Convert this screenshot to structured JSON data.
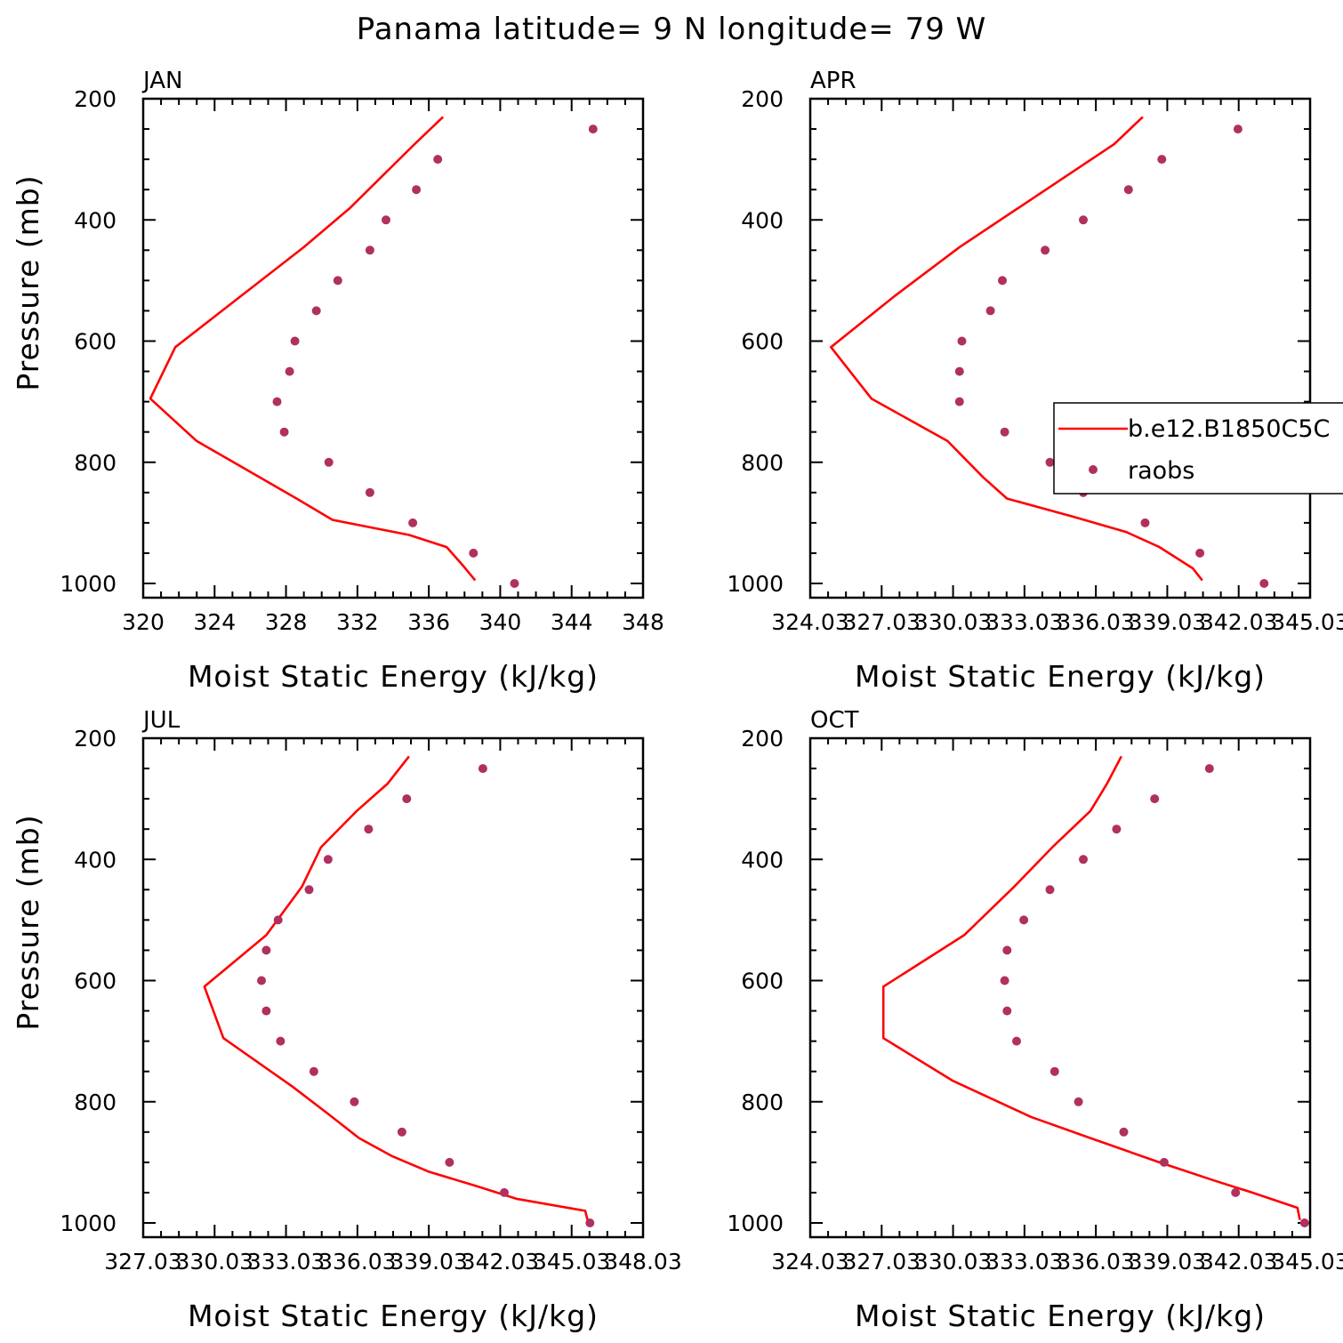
{
  "title": "Panama  latitude= 9 N longitude= 79 W",
  "colors": {
    "model": "#ff0000",
    "obs": "#b03060"
  },
  "legend": {
    "entries": [
      "b.e12.B1850C5C",
      "raobs"
    ],
    "location": "APR panel, right edge"
  },
  "chart_data": [
    {
      "type": "line",
      "panel_label": "JAN",
      "xlabel": "Moist Static Energy (kJ/kg)",
      "ylabel": "Pressure (mb)",
      "xlim": [
        320,
        348
      ],
      "ylim": [
        1000,
        200
      ],
      "x_ticks": [
        "320",
        "324",
        "328",
        "332",
        "336",
        "340",
        "344",
        "348"
      ],
      "y_ticks": [
        "200",
        "400",
        "600",
        "800",
        "1000"
      ],
      "series": [
        {
          "name": "b.e12.B1850C5C",
          "kind": "line",
          "points": [
            [
              336.8,
              230
            ],
            [
              335.2,
              275
            ],
            [
              331.6,
              380
            ],
            [
              329,
              445
            ],
            [
              321.8,
              610
            ],
            [
              320.4,
              695
            ],
            [
              323,
              765
            ],
            [
              328.6,
              860
            ],
            [
              330.6,
              895
            ],
            [
              334.9,
              920
            ],
            [
              337,
              940
            ],
            [
              337.9,
              970
            ],
            [
              338.6,
              995
            ]
          ]
        },
        {
          "name": "raobs",
          "kind": "markers",
          "points": [
            [
              345.2,
              250
            ],
            [
              336.5,
              300
            ],
            [
              335.3,
              350
            ],
            [
              333.6,
              400
            ],
            [
              332.7,
              450
            ],
            [
              330.9,
              500
            ],
            [
              329.7,
              550
            ],
            [
              328.5,
              600
            ],
            [
              328.2,
              650
            ],
            [
              327.5,
              700
            ],
            [
              327.9,
              750
            ],
            [
              330.4,
              800
            ],
            [
              332.7,
              850
            ],
            [
              335.1,
              900
            ],
            [
              338.5,
              950
            ],
            [
              340.8,
              1000
            ]
          ]
        }
      ]
    },
    {
      "type": "line",
      "panel_label": "APR",
      "xlabel": "Moist Static Energy (kJ/kg)",
      "ylabel": "",
      "xlim": [
        324.03,
        345.03
      ],
      "ylim": [
        1000,
        200
      ],
      "x_ticks": [
        "324.03",
        "327.03",
        "330.03",
        "333.03",
        "336.03",
        "339.03",
        "342.03",
        "345.03"
      ],
      "y_ticks": [
        "200",
        "400",
        "600",
        "800",
        "1000"
      ],
      "series": [
        {
          "name": "b.e12.B1850C5C",
          "kind": "line",
          "points": [
            [
              338,
              230
            ],
            [
              336.8,
              275
            ],
            [
              330.3,
              445
            ],
            [
              327.6,
              525
            ],
            [
              324.9,
              610
            ],
            [
              326.6,
              695
            ],
            [
              329.8,
              765
            ],
            [
              331.3,
              825
            ],
            [
              332.3,
              860
            ],
            [
              335.1,
              890
            ],
            [
              337.3,
              915
            ],
            [
              338.7,
              940
            ],
            [
              340.1,
              975
            ],
            [
              340.5,
              995
            ]
          ]
        },
        {
          "name": "raobs",
          "kind": "markers",
          "points": [
            [
              342,
              250
            ],
            [
              338.8,
              300
            ],
            [
              337.4,
              350
            ],
            [
              335.5,
              400
            ],
            [
              333.9,
              450
            ],
            [
              332.1,
              500
            ],
            [
              331.6,
              550
            ],
            [
              330.4,
              600
            ],
            [
              330.3,
              650
            ],
            [
              330.3,
              700
            ],
            [
              332.2,
              750
            ],
            [
              334.1,
              800
            ],
            [
              335.5,
              850
            ],
            [
              338.1,
              900
            ],
            [
              340.4,
              950
            ],
            [
              343.1,
              1000
            ]
          ]
        }
      ]
    },
    {
      "type": "line",
      "panel_label": "JUL",
      "xlabel": "Moist Static Energy (kJ/kg)",
      "ylabel": "Pressure (mb)",
      "xlim": [
        327.03,
        348.03
      ],
      "ylim": [
        1000,
        200
      ],
      "x_ticks": [
        "327.03",
        "330.03",
        "333.03",
        "336.03",
        "339.03",
        "342.03",
        "345.03",
        "348.03"
      ],
      "y_ticks": [
        "200",
        "400",
        "600",
        "800",
        "1000"
      ],
      "series": [
        {
          "name": "b.e12.B1850C5C",
          "kind": "line",
          "points": [
            [
              338.2,
              230
            ],
            [
              337.3,
              275
            ],
            [
              336,
              320
            ],
            [
              334.5,
              380
            ],
            [
              333.7,
              445
            ],
            [
              332.2,
              525
            ],
            [
              329.6,
              610
            ],
            [
              330.4,
              695
            ],
            [
              333.3,
              775
            ],
            [
              334.8,
              820
            ],
            [
              336.1,
              860
            ],
            [
              337.5,
              890
            ],
            [
              339,
              915
            ],
            [
              341.1,
              940
            ],
            [
              342.7,
              960
            ],
            [
              345.6,
              980
            ],
            [
              345.7,
              995
            ]
          ]
        },
        {
          "name": "raobs",
          "kind": "markers",
          "points": [
            [
              341.3,
              250
            ],
            [
              338.1,
              300
            ],
            [
              336.5,
              350
            ],
            [
              334.8,
              400
            ],
            [
              334,
              450
            ],
            [
              332.7,
              500
            ],
            [
              332.2,
              550
            ],
            [
              332,
              600
            ],
            [
              332.2,
              650
            ],
            [
              332.8,
              700
            ],
            [
              334.2,
              750
            ],
            [
              335.9,
              800
            ],
            [
              337.9,
              850
            ],
            [
              339.9,
              900
            ],
            [
              342.2,
              950
            ],
            [
              345.8,
              1000
            ]
          ]
        }
      ]
    },
    {
      "type": "line",
      "panel_label": "OCT",
      "xlabel": "Moist Static Energy (kJ/kg)",
      "ylabel": "",
      "xlim": [
        324.03,
        345.03
      ],
      "ylim": [
        1000,
        200
      ],
      "x_ticks": [
        "324.03",
        "327.03",
        "330.03",
        "333.03",
        "336.03",
        "339.03",
        "342.03",
        "345.03"
      ],
      "y_ticks": [
        "200",
        "400",
        "600",
        "800",
        "1000"
      ],
      "series": [
        {
          "name": "b.e12.B1850C5C",
          "kind": "line",
          "points": [
            [
              337.1,
              230
            ],
            [
              336.5,
              275
            ],
            [
              335.8,
              320
            ],
            [
              334.2,
              380
            ],
            [
              332.6,
              445
            ],
            [
              330.5,
              525
            ],
            [
              327.1,
              610
            ],
            [
              327.1,
              695
            ],
            [
              330,
              765
            ],
            [
              333.3,
              825
            ],
            [
              335.8,
              860
            ],
            [
              338.7,
              900
            ],
            [
              341,
              930
            ],
            [
              342.6,
              950
            ],
            [
              344.5,
              975
            ],
            [
              344.6,
              995
            ]
          ]
        },
        {
          "name": "raobs",
          "kind": "markers",
          "points": [
            [
              340.8,
              250
            ],
            [
              338.5,
              300
            ],
            [
              336.9,
              350
            ],
            [
              335.5,
              400
            ],
            [
              334.1,
              450
            ],
            [
              333,
              500
            ],
            [
              332.3,
              550
            ],
            [
              332.2,
              600
            ],
            [
              332.3,
              650
            ],
            [
              332.7,
              700
            ],
            [
              334.3,
              750
            ],
            [
              335.3,
              800
            ],
            [
              337.2,
              850
            ],
            [
              338.9,
              900
            ],
            [
              341.9,
              950
            ],
            [
              344.8,
              1000
            ]
          ]
        }
      ]
    }
  ]
}
